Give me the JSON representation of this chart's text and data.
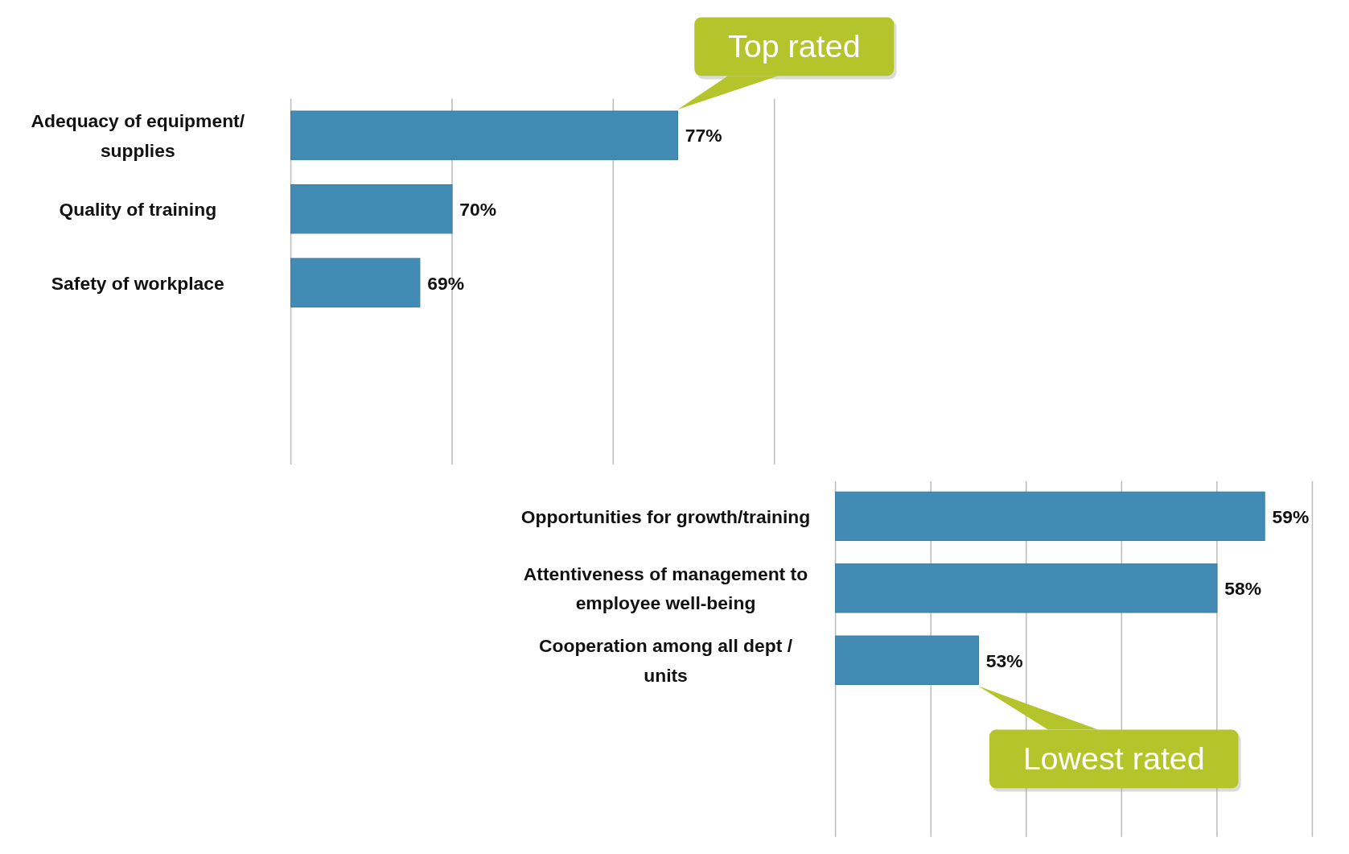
{
  "chart_data": [
    {
      "type": "bar",
      "orientation": "horizontal",
      "categories": [
        "Adequacy of equipment/ supplies",
        "Quality of training",
        "Safety of workplace"
      ],
      "values": [
        77,
        70,
        69
      ],
      "value_labels": [
        "77%",
        "70%",
        "69%"
      ],
      "color": "#428bb5",
      "xlim": [
        65,
        80
      ],
      "xticks": [
        {
          "value": 65,
          "label": null
        },
        {
          "value": 70,
          "label": null
        },
        {
          "value": 75,
          "label": null
        },
        {
          "value": 80,
          "label": null
        }
      ],
      "grid": "x",
      "tick_labels": "y",
      "annotations": [
        {
          "text": "Top rated",
          "x": 77,
          "y": "Adequacy of equipment/ supplies"
        }
      ]
    },
    {
      "type": "bar",
      "orientation": "horizontal",
      "categories": [
        "Opportunities for growth/training",
        "Attentiveness of management to employee well-being",
        "Cooperation among all dept / units"
      ],
      "values": [
        59,
        58,
        53
      ],
      "value_labels": [
        "59%",
        "58%",
        "53%"
      ],
      "color": "#428bb5",
      "xlim": [
        50,
        60
      ],
      "xticks": [
        {
          "value": 50,
          "label": null
        },
        {
          "value": 52,
          "label": null
        },
        {
          "value": 54,
          "label": null
        },
        {
          "value": 56,
          "label": null
        },
        {
          "value": 58,
          "label": null
        },
        {
          "value": 60,
          "label": null
        }
      ],
      "grid": "x",
      "tick_labels": "y",
      "annotations": [
        {
          "text": "Lowest rated",
          "x": 53,
          "y": "Cooperation among all dept / units"
        }
      ]
    }
  ]
}
